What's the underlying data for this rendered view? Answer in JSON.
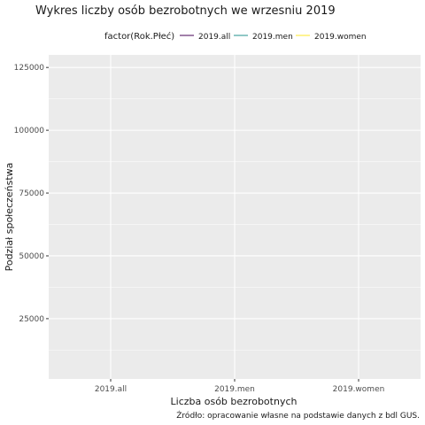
{
  "chart_data": {
    "type": "line",
    "title": "Wykres liczby osób bezrobotnych we wrzesniu 2019",
    "xlabel": "Liczba osób bezrobotnych",
    "ylabel": "Podział społeczeństwa",
    "caption": "Źródło: opracowanie własne na podstawie danych z bdl GUS.",
    "categories": [
      "2019.all",
      "2019.men",
      "2019.women"
    ],
    "y_ticks": [
      25000,
      50000,
      75000,
      100000,
      125000
    ],
    "y_tick_labels": [
      "25000",
      "50000",
      "75000",
      "100000",
      "125000"
    ],
    "ylim": [
      1000,
      130000
    ],
    "grid": true,
    "legend": {
      "title": "factor(Rok.Płeć)",
      "position": "top",
      "entries": [
        {
          "label": "2019.all",
          "color": "#440154"
        },
        {
          "label": "2019.men",
          "color": "#21908C"
        },
        {
          "label": "2019.women",
          "color": "#FDE725"
        }
      ]
    },
    "series": []
  }
}
